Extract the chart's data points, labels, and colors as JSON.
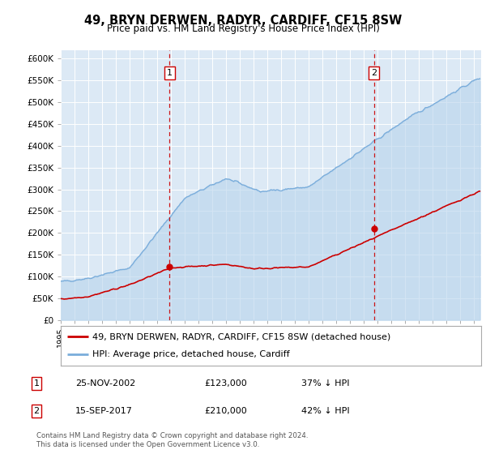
{
  "title": "49, BRYN DERWEN, RADYR, CARDIFF, CF15 8SW",
  "subtitle": "Price paid vs. HM Land Registry's House Price Index (HPI)",
  "ylabel_ticks": [
    "£0",
    "£50K",
    "£100K",
    "£150K",
    "£200K",
    "£250K",
    "£300K",
    "£350K",
    "£400K",
    "£450K",
    "£500K",
    "£550K",
    "£600K"
  ],
  "ytick_values": [
    0,
    50000,
    100000,
    150000,
    200000,
    250000,
    300000,
    350000,
    400000,
    450000,
    500000,
    550000,
    600000
  ],
  "hpi_color": "#7aaddb",
  "hpi_fill_color": "#b8d4ec",
  "price_color": "#cc0000",
  "vline_color": "#cc0000",
  "marker1_date": 2002.9,
  "marker1_price": 123000,
  "marker2_date": 2017.72,
  "marker2_price": 210000,
  "legend_entries": [
    "49, BRYN DERWEN, RADYR, CARDIFF, CF15 8SW (detached house)",
    "HPI: Average price, detached house, Cardiff"
  ],
  "table_rows": [
    [
      "1",
      "25-NOV-2002",
      "£123,000",
      "37% ↓ HPI"
    ],
    [
      "2",
      "15-SEP-2017",
      "£210,000",
      "42% ↓ HPI"
    ]
  ],
  "footnote": "Contains HM Land Registry data © Crown copyright and database right 2024.\nThis data is licensed under the Open Government Licence v3.0.",
  "xmin": 1995,
  "xmax": 2025.5,
  "ymin": 0,
  "ymax": 620000,
  "background_color": "#dce9f5"
}
